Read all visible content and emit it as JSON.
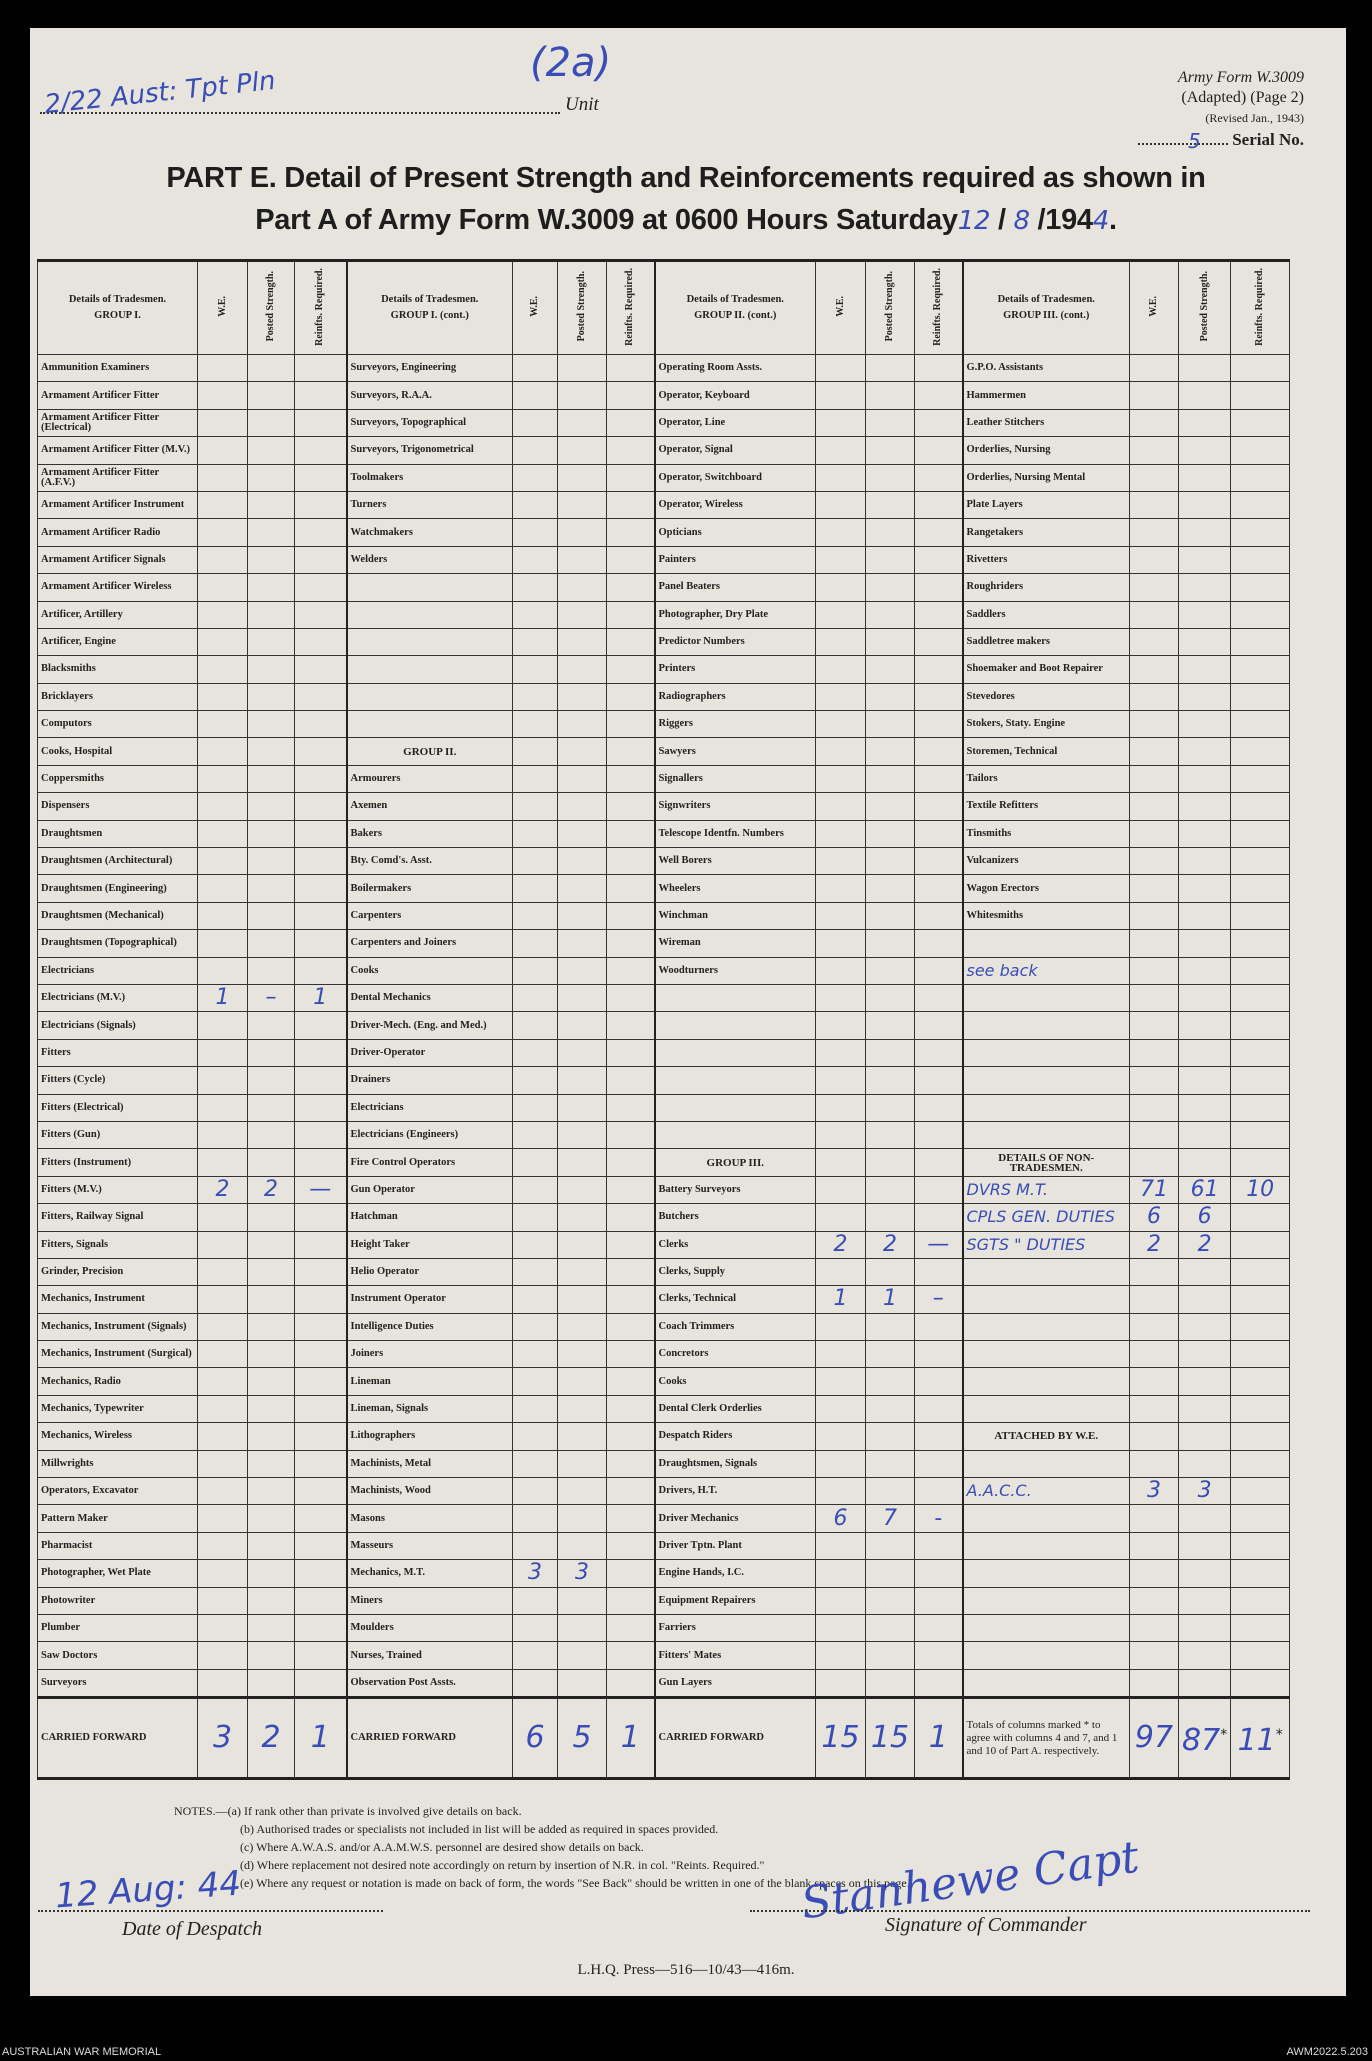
{
  "header": {
    "unit_value": "2/22 Aust: Tpt Pln",
    "unit_label": "Unit",
    "page_mark": "(2a)",
    "form_line1": "Army Form W.3009",
    "form_line2": "(Adapted) (Page 2)",
    "form_line3": "(Revised Jan., 1943)",
    "serial_value": "5",
    "serial_label": "Serial No.",
    "title_line1": "PART E.  Detail of Present Strength and Reinforcements required as shown in",
    "title_line2": "Part A of Army Form W.3009 at 0600 Hours Saturday",
    "date_day": "12",
    "date_month": "8",
    "date_year_prefix": "/194",
    "date_year_digit": "4",
    "date_end": "."
  },
  "columns": {
    "we": "W.E.",
    "posted": "Posted Strength.",
    "reinfts": "Reinfts. Required.",
    "details": "Details of Tradesmen.",
    "groups": [
      "GROUP I.",
      "GROUP I. (cont.)",
      "GROUP II. (cont.)",
      "GROUP III. (cont.)"
    ]
  },
  "sections": [
    [
      [
        "Ammunition Examiners"
      ],
      [
        "Armament Artificer Fitter"
      ],
      [
        "Armament Artificer Fitter (Electrical)"
      ],
      [
        "Armament Artificer Fitter (M.V.)"
      ],
      [
        "Armament Artificer Fitter (A.F.V.)"
      ],
      [
        "Armament Artificer Instrument"
      ],
      [
        "Armament Artificer Radio"
      ],
      [
        "Armament Artificer Signals"
      ],
      [
        "Armament Artificer Wireless"
      ],
      [
        "Artificer, Artillery"
      ],
      [
        "Artificer, Engine"
      ],
      [
        "Blacksmiths"
      ],
      [
        "Bricklayers"
      ],
      [
        "Computors"
      ],
      [
        "Cooks, Hospital"
      ],
      [
        "Coppersmiths"
      ],
      [
        "Dispensers"
      ],
      [
        "Draughtsmen"
      ],
      [
        "Draughtsmen (Architectural)"
      ],
      [
        "Draughtsmen (Engineering)"
      ],
      [
        "Draughtsmen (Mechanical)"
      ],
      [
        "Draughtsmen (Topographical)"
      ],
      [
        "Electricians"
      ],
      [
        "Electricians (M.V.)",
        "1",
        "–",
        "1"
      ],
      [
        "Electricians (Signals)"
      ],
      [
        "Fitters"
      ],
      [
        "Fitters (Cycle)"
      ],
      [
        "Fitters (Electrical)"
      ],
      [
        "Fitters (Gun)"
      ],
      [
        "Fitters (Instrument)"
      ],
      [
        "Fitters (M.V.)",
        "2",
        "2",
        "—"
      ],
      [
        "Fitters, Railway Signal"
      ],
      [
        "Fitters, Signals"
      ],
      [
        "Grinder, Precision"
      ],
      [
        "Mechanics, Instrument"
      ],
      [
        "Mechanics, Instrument (Signals)"
      ],
      [
        "Mechanics, Instrument (Surgical)"
      ],
      [
        "Mechanics, Radio"
      ],
      [
        "Mechanics, Typewriter"
      ],
      [
        "Mechanics, Wireless"
      ],
      [
        "Millwrights"
      ],
      [
        "Operators, Excavator"
      ],
      [
        "Pattern Maker"
      ],
      [
        "Pharmacist"
      ],
      [
        "Photographer, Wet Plate"
      ],
      [
        "Photowriter"
      ],
      [
        "Plumber"
      ],
      [
        "Saw Doctors"
      ],
      [
        "Surveyors"
      ]
    ],
    [
      [
        "Surveyors, Engineering"
      ],
      [
        "Surveyors, R.A.A."
      ],
      [
        "Surveyors, Topographical"
      ],
      [
        "Surveyors, Trigonometrical"
      ],
      [
        "Toolmakers"
      ],
      [
        "Turners"
      ],
      [
        "Watchmakers"
      ],
      [
        "Welders"
      ],
      [
        ""
      ],
      [
        ""
      ],
      [
        ""
      ],
      [
        ""
      ],
      [
        ""
      ],
      [
        ""
      ],
      {
        "heading": "GROUP II."
      },
      [
        "Armourers"
      ],
      [
        "Axemen"
      ],
      [
        "Bakers"
      ],
      [
        "Bty. Comd's. Asst."
      ],
      [
        "Boilermakers"
      ],
      [
        "Carpenters"
      ],
      [
        "Carpenters and Joiners"
      ],
      [
        "Cooks"
      ],
      [
        "Dental Mechanics"
      ],
      [
        "Driver-Mech. (Eng. and Med.)"
      ],
      [
        "Driver-Operator"
      ],
      [
        "Drainers"
      ],
      [
        "Electricians"
      ],
      [
        "Electricians (Engineers)"
      ],
      [
        "Fire Control Operators"
      ],
      [
        "Gun Operator"
      ],
      [
        "Hatchman"
      ],
      [
        "Height Taker"
      ],
      [
        "Helio Operator"
      ],
      [
        "Instrument Operator"
      ],
      [
        "Intelligence Duties"
      ],
      [
        "Joiners"
      ],
      [
        "Lineman"
      ],
      [
        "Lineman, Signals"
      ],
      [
        "Lithographers"
      ],
      [
        "Machinists, Metal"
      ],
      [
        "Machinists, Wood"
      ],
      [
        "Masons"
      ],
      [
        "Masseurs"
      ],
      [
        "Mechanics, M.T.",
        "3",
        "3",
        ""
      ],
      [
        "Miners"
      ],
      [
        "Moulders"
      ],
      [
        "Nurses, Trained"
      ],
      [
        "Observation Post Assts."
      ]
    ],
    [
      [
        "Operating Room Assts."
      ],
      [
        "Operator, Keyboard"
      ],
      [
        "Operator, Line"
      ],
      [
        "Operator, Signal"
      ],
      [
        "Operator, Switchboard"
      ],
      [
        "Operator, Wireless"
      ],
      [
        "Opticians"
      ],
      [
        "Painters"
      ],
      [
        "Panel Beaters"
      ],
      [
        "Photographer, Dry Plate"
      ],
      [
        "Predictor Numbers"
      ],
      [
        "Printers"
      ],
      [
        "Radiographers"
      ],
      [
        "Riggers"
      ],
      [
        "Sawyers"
      ],
      [
        "Signallers"
      ],
      [
        "Signwriters"
      ],
      [
        "Telescope Identfn. Numbers"
      ],
      [
        "Well Borers"
      ],
      [
        "Wheelers"
      ],
      [
        "Winchman"
      ],
      [
        "Wireman"
      ],
      [
        "Woodturners"
      ],
      [
        ""
      ],
      [
        ""
      ],
      [
        ""
      ],
      [
        ""
      ],
      [
        ""
      ],
      [
        ""
      ],
      {
        "heading": "GROUP III."
      },
      [
        "Battery Surveyors"
      ],
      [
        "Butchers"
      ],
      [
        "Clerks",
        "2",
        "2",
        "—"
      ],
      [
        "Clerks, Supply"
      ],
      [
        "Clerks, Technical",
        "1",
        "1",
        "–"
      ],
      [
        "Coach Trimmers"
      ],
      [
        "Concretors"
      ],
      [
        "Cooks"
      ],
      [
        "Dental Clerk Orderlies"
      ],
      [
        "Despatch Riders"
      ],
      [
        "Draughtsmen, Signals"
      ],
      [
        "Drivers, H.T."
      ],
      [
        "Driver Mechanics",
        "6",
        "7",
        "-"
      ],
      [
        "Driver Tptn. Plant"
      ],
      [
        "Engine Hands, I.C."
      ],
      [
        "Equipment Repairers"
      ],
      [
        "Farriers"
      ],
      [
        "Fitters' Mates"
      ],
      [
        "Gun Layers"
      ]
    ],
    [
      [
        "G.P.O. Assistants"
      ],
      [
        "Hammermen"
      ],
      [
        "Leather Stitchers"
      ],
      [
        "Orderlies, Nursing"
      ],
      [
        "Orderlies, Nursing Mental"
      ],
      [
        "Plate Layers"
      ],
      [
        "Rangetakers"
      ],
      [
        "Rivetters"
      ],
      [
        "Roughriders"
      ],
      [
        "Saddlers"
      ],
      [
        "Saddletree makers"
      ],
      [
        "Shoemaker and Boot Repairer"
      ],
      [
        "Stevedores"
      ],
      [
        "Stokers, Staty. Engine"
      ],
      [
        "Storemen, Technical"
      ],
      [
        "Tailors"
      ],
      [
        "Textile Refitters"
      ],
      [
        "Tinsmiths"
      ],
      [
        "Vulcanizers"
      ],
      [
        "Wagon Erectors"
      ],
      [
        "Whitesmiths"
      ],
      [
        ""
      ],
      {
        "hand": "see back"
      },
      [
        ""
      ],
      [
        ""
      ],
      [
        ""
      ],
      [
        ""
      ],
      [
        ""
      ],
      [
        ""
      ],
      {
        "heading": "DETAILS OF NON-TRADESMEN."
      },
      {
        "hand": "DVRS M.T.",
        "we": "71",
        "ps": "61",
        "rr": "10"
      },
      {
        "hand": "CPLS GEN. DUTIES",
        "we": "6",
        "ps": "6",
        "rr": ""
      },
      {
        "hand": "SGTS \" DUTIES",
        "we": "2",
        "ps": "2",
        "rr": ""
      },
      [
        ""
      ],
      [
        ""
      ],
      [
        ""
      ],
      [
        ""
      ],
      [
        ""
      ],
      [
        ""
      ],
      {
        "heading": "ATTACHED BY W.E."
      },
      [
        ""
      ],
      {
        "hand": "A.A.C.C.",
        "we": "3",
        "ps": "3",
        "rr": ""
      },
      [
        ""
      ],
      [
        ""
      ],
      [
        ""
      ],
      [
        ""
      ],
      [
        ""
      ],
      [
        ""
      ],
      [
        ""
      ]
    ]
  ],
  "carried_forward": {
    "label": "CARRIED FORWARD",
    "values": [
      [
        "3",
        "2",
        "1"
      ],
      [
        "6",
        "5",
        "1"
      ],
      [
        "15",
        "15",
        "1"
      ]
    ],
    "totals_label": "Totals of columns marked * to agree with columns 4 and 7, and 1 and 10 of Part A. respectively.",
    "totals": [
      "97",
      "87",
      "11"
    ],
    "asterisk": "*"
  },
  "notes": {
    "a": "NOTES.—(a) If rank other than private is involved give details on back.",
    "b": "(b) Authorised trades or specialists not included in list will be added as required in spaces provided.",
    "c": "(c) Where A.W.A.S. and/or A.A.M.W.S. personnel are desired show details on back.",
    "d": "(d) Where replacement not desired note accordingly on return by insertion of N.R. in col. \"Reints. Required.\"",
    "e": "(e) Where any request or notation is made on back of form, the words \"See Back\" should be written in one of the blank spaces on this page."
  },
  "footer": {
    "date_value": "12 Aug: 44",
    "date_label": "Date of Despatch",
    "signature": "Stanhewe Capt",
    "signature_label": "Signature of Commander",
    "press": "L.H.Q.  Press—516—10/43—416m.",
    "archive_left": "AUSTRALIAN WAR MEMORIAL",
    "archive_right": "AWM2022.5.203"
  },
  "colors": {
    "ink": "#3a4cb8",
    "paper": "#e6e4dc",
    "print": "#222222"
  }
}
